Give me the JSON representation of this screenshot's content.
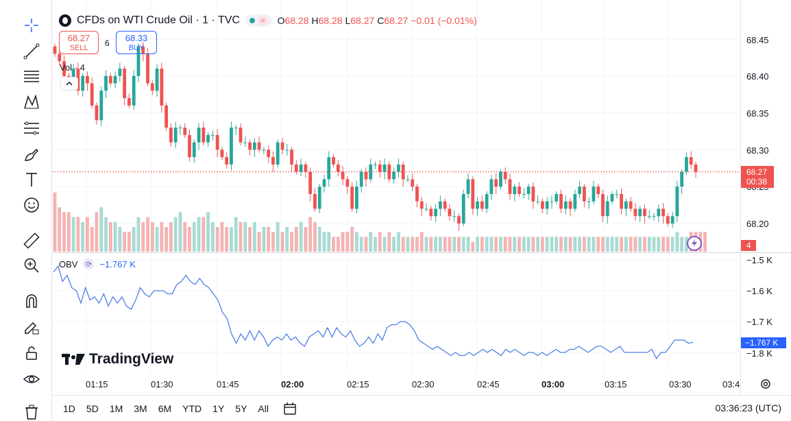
{
  "legend": {
    "symbol": "CFDs on WTI Crude Oil · 1 · TVC",
    "wave_badge": "≈",
    "ohlc": {
      "o_label": "O",
      "o": "68.28",
      "h_label": "H",
      "h": "68.28",
      "l_label": "L",
      "l": "68.27",
      "c_label": "C",
      "c": "68.27",
      "change": "−0.01 (−0.01%)"
    }
  },
  "trade": {
    "sell_price": "68.27",
    "sell_label": "SELL",
    "spread": "6",
    "buy_price": "68.33",
    "buy_label": "BUY"
  },
  "volume_label": "Vol · 4",
  "price_axis": {
    "ticks": [
      "68.45",
      "68.40",
      "68.35",
      "68.30",
      "68.25",
      "68.20"
    ],
    "current_price": "68.27",
    "countdown": "00:38",
    "volume_tag": "4"
  },
  "obv": {
    "label": "OBV",
    "value": "−1.767 K",
    "axis_ticks": [
      "−1.5 K",
      "−1.6 K",
      "−1.7 K",
      "−1.8 K"
    ],
    "current_tag": "−1.767 K"
  },
  "brand": "TradingView",
  "time_axis": {
    "labels": [
      {
        "text": "01:15",
        "bold": false
      },
      {
        "text": "01:30",
        "bold": false
      },
      {
        "text": "01:45",
        "bold": false
      },
      {
        "text": "02:00",
        "bold": true
      },
      {
        "text": "02:15",
        "bold": false
      },
      {
        "text": "02:30",
        "bold": false
      },
      {
        "text": "02:45",
        "bold": false
      },
      {
        "text": "03:00",
        "bold": true
      },
      {
        "text": "03:15",
        "bold": false
      },
      {
        "text": "03:30",
        "bold": false
      },
      {
        "text": "03:4",
        "bold": false
      }
    ]
  },
  "bottom_bar": {
    "ranges": [
      "1D",
      "5D",
      "1M",
      "3M",
      "6M",
      "YTD",
      "1Y",
      "5Y",
      "All"
    ],
    "clock": "03:36:23 (UTC)"
  },
  "colors": {
    "up": "#26a69a",
    "down": "#ef5350",
    "obv_line": "#4e7ee8",
    "accent": "#2962ff"
  },
  "chart_data": [
    {
      "type": "candlestick",
      "title": "CFDs on WTI Crude Oil · 1 · TVC",
      "ylim": [
        68.17,
        68.47
      ],
      "closes": [
        68.43,
        68.42,
        68.4,
        68.39,
        68.41,
        68.38,
        68.4,
        68.39,
        68.36,
        68.34,
        68.38,
        68.4,
        68.39,
        68.4,
        68.41,
        68.37,
        68.36,
        68.4,
        68.44,
        68.43,
        68.39,
        68.38,
        68.41,
        68.36,
        68.33,
        68.31,
        68.33,
        68.33,
        68.32,
        68.29,
        68.31,
        68.33,
        68.31,
        68.32,
        68.32,
        68.3,
        68.29,
        68.28,
        68.33,
        68.33,
        68.31,
        68.31,
        68.3,
        68.31,
        68.3,
        68.3,
        68.29,
        68.28,
        68.31,
        68.3,
        68.3,
        68.28,
        68.27,
        68.28,
        68.27,
        68.24,
        68.22,
        68.25,
        68.26,
        68.29,
        68.28,
        68.27,
        68.26,
        68.25,
        68.22,
        68.25,
        68.27,
        68.26,
        68.28,
        68.28,
        68.27,
        68.28,
        68.26,
        68.27,
        68.28,
        68.26,
        68.26,
        68.25,
        68.23,
        68.22,
        68.22,
        68.21,
        68.22,
        68.23,
        68.22,
        68.21,
        68.21,
        68.2,
        68.24,
        68.26,
        68.22,
        68.23,
        68.22,
        68.24,
        68.26,
        68.25,
        68.27,
        68.26,
        68.24,
        68.25,
        68.24,
        68.24,
        68.25,
        68.23,
        68.23,
        68.22,
        68.23,
        68.23,
        68.24,
        68.22,
        68.23,
        68.22,
        68.24,
        68.25,
        68.23,
        68.23,
        68.25,
        68.24,
        68.21,
        68.23,
        68.24,
        68.24,
        68.22,
        68.23,
        68.22,
        68.21,
        68.22,
        68.21,
        68.21,
        68.21,
        68.22,
        68.21,
        68.2,
        68.21,
        68.25,
        68.27,
        68.29,
        68.28,
        68.27
      ]
    },
    {
      "type": "bar",
      "title": "Vol",
      "values": [
        12,
        9,
        8,
        8,
        7,
        7,
        6,
        7,
        5,
        8,
        9,
        7,
        6,
        6,
        5,
        4,
        4,
        5,
        7,
        6,
        7,
        6,
        5,
        6,
        5,
        6,
        7,
        8,
        6,
        5,
        6,
        7,
        7,
        8,
        6,
        5,
        6,
        5,
        5,
        7,
        6,
        6,
        5,
        6,
        4,
        5,
        5,
        4,
        6,
        4,
        5,
        4,
        5,
        6,
        5,
        7,
        6,
        5,
        4,
        4,
        3,
        3,
        4,
        4,
        5,
        4,
        3,
        3,
        4,
        3,
        4,
        3,
        4,
        3,
        4,
        3,
        3,
        3,
        3,
        4,
        3,
        3,
        3,
        3,
        3,
        3,
        3,
        3,
        3,
        3,
        2,
        3,
        3,
        3,
        3,
        3,
        3,
        3,
        3,
        3,
        3,
        3,
        3,
        3,
        3,
        3,
        3,
        3,
        3,
        3,
        3,
        3,
        3,
        3,
        3,
        3,
        3,
        3,
        3,
        3,
        3,
        3,
        3,
        3,
        3,
        3,
        3,
        3,
        3,
        3,
        3,
        3,
        3,
        3,
        4,
        3,
        3,
        4,
        4,
        4,
        4
      ]
    },
    {
      "type": "line",
      "title": "OBV",
      "ylim": [
        -1.83,
        -1.47
      ],
      "values": [
        -1.54,
        -1.52,
        -1.57,
        -1.55,
        -1.59,
        -1.6,
        -1.64,
        -1.59,
        -1.63,
        -1.62,
        -1.64,
        -1.61,
        -1.65,
        -1.62,
        -1.64,
        -1.62,
        -1.65,
        -1.66,
        -1.63,
        -1.59,
        -1.61,
        -1.62,
        -1.6,
        -1.6,
        -1.6,
        -1.61,
        -1.61,
        -1.58,
        -1.57,
        -1.55,
        -1.57,
        -1.58,
        -1.56,
        -1.58,
        -1.59,
        -1.61,
        -1.63,
        -1.67,
        -1.69,
        -1.74,
        -1.77,
        -1.74,
        -1.76,
        -1.73,
        -1.76,
        -1.73,
        -1.75,
        -1.78,
        -1.76,
        -1.75,
        -1.76,
        -1.74,
        -1.76,
        -1.75,
        -1.77,
        -1.78,
        -1.75,
        -1.74,
        -1.73,
        -1.75,
        -1.72,
        -1.75,
        -1.72,
        -1.74,
        -1.75,
        -1.73,
        -1.76,
        -1.78,
        -1.77,
        -1.75,
        -1.77,
        -1.74,
        -1.76,
        -1.72,
        -1.71,
        -1.71,
        -1.7,
        -1.7,
        -1.71,
        -1.73,
        -1.76,
        -1.77,
        -1.78,
        -1.79,
        -1.78,
        -1.79,
        -1.8,
        -1.81,
        -1.8,
        -1.81,
        -1.81,
        -1.8,
        -1.81,
        -1.8,
        -1.79,
        -1.8,
        -1.79,
        -1.8,
        -1.81,
        -1.79,
        -1.8,
        -1.79,
        -1.8,
        -1.81,
        -1.8,
        -1.8,
        -1.81,
        -1.8,
        -1.81,
        -1.8,
        -1.79,
        -1.8,
        -1.8,
        -1.79,
        -1.79,
        -1.78,
        -1.79,
        -1.8,
        -1.79,
        -1.78,
        -1.78,
        -1.79,
        -1.8,
        -1.79,
        -1.78,
        -1.8,
        -1.8,
        -1.8,
        -1.8,
        -1.8,
        -1.8,
        -1.79,
        -1.82,
        -1.8,
        -1.8,
        -1.78,
        -1.76,
        -1.76,
        -1.76,
        -1.77,
        -1.767
      ]
    }
  ]
}
